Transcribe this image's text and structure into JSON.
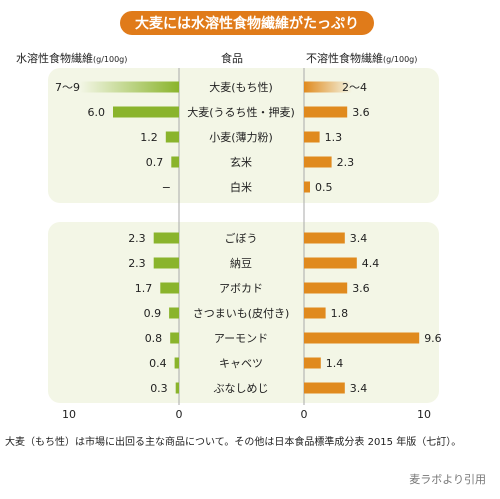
{
  "chart_data": {
    "type": "bar",
    "title": "大麦には水溶性食物繊維がたっぷり",
    "left_header": "水溶性食物繊維",
    "center_header": "食品",
    "right_header": "不溶性食物繊維",
    "unit": "(g/100g)",
    "xlim": [
      0,
      10
    ],
    "ticks": [
      "10",
      "0",
      "0",
      "10"
    ],
    "groups": [
      [
        {
          "food": "大麦(もち性)",
          "soluble": 8,
          "soluble_label": "7〜9",
          "soluble_range": [
            7,
            9
          ],
          "insoluble": 3,
          "insoluble_label": "2〜4",
          "insoluble_range": [
            2,
            4
          ]
        },
        {
          "food": "大麦(うるち性・押麦)",
          "soluble": 6.0,
          "soluble_label": "6.0",
          "insoluble": 3.6,
          "insoluble_label": "3.6"
        },
        {
          "food": "小麦(薄力粉)",
          "soluble": 1.2,
          "soluble_label": "1.2",
          "insoluble": 1.3,
          "insoluble_label": "1.3"
        },
        {
          "food": "玄米",
          "soluble": 0.7,
          "soluble_label": "0.7",
          "insoluble": 2.3,
          "insoluble_label": "2.3"
        },
        {
          "food": "白米",
          "soluble": 0,
          "soluble_label": "−",
          "insoluble": 0.5,
          "insoluble_label": "0.5"
        }
      ],
      [
        {
          "food": "ごぼう",
          "soluble": 2.3,
          "soluble_label": "2.3",
          "insoluble": 3.4,
          "insoluble_label": "3.4"
        },
        {
          "food": "納豆",
          "soluble": 2.3,
          "soluble_label": "2.3",
          "insoluble": 4.4,
          "insoluble_label": "4.4"
        },
        {
          "food": "アボカド",
          "soluble": 1.7,
          "soluble_label": "1.7",
          "insoluble": 3.6,
          "insoluble_label": "3.6"
        },
        {
          "food": "さつまいも(皮付き)",
          "soluble": 0.9,
          "soluble_label": "0.9",
          "insoluble": 1.8,
          "insoluble_label": "1.8"
        },
        {
          "food": "アーモンド",
          "soluble": 0.8,
          "soluble_label": "0.8",
          "insoluble": 9.6,
          "insoluble_label": "9.6"
        },
        {
          "food": "キャベツ",
          "soluble": 0.4,
          "soluble_label": "0.4",
          "insoluble": 1.4,
          "insoluble_label": "1.4"
        },
        {
          "food": "ぶなしめじ",
          "soluble": 0.3,
          "soluble_label": "0.3",
          "insoluble": 3.4,
          "insoluble_label": "3.4"
        }
      ]
    ],
    "colors": {
      "soluble": "#8ab42c",
      "insoluble": "#e08a1e",
      "panel": "#f3f6e6",
      "axis": "#aaaaaa",
      "text": "#222222"
    }
  },
  "footnote": "大麦（もち性）は市場に出回る主な商品について。その他は日本食品標準成分表 2015 年版（七訂）。",
  "source": "麦ラボより引用"
}
